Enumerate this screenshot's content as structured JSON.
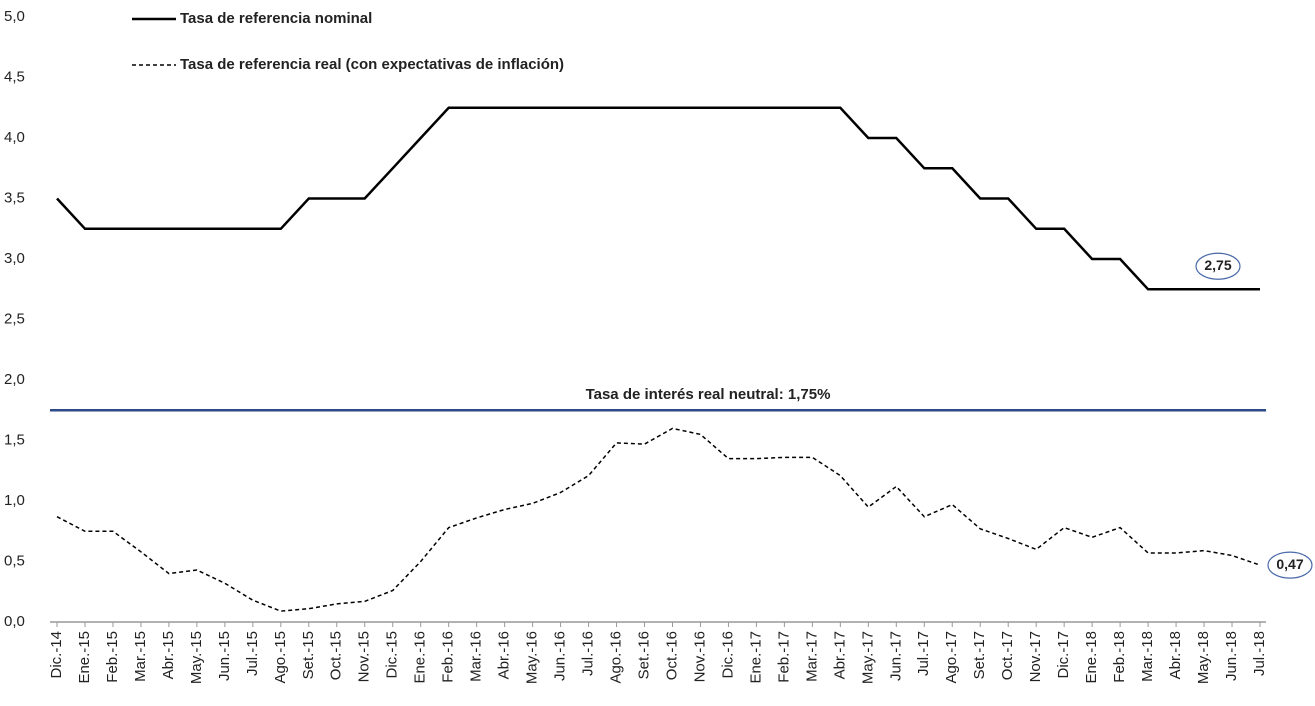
{
  "chart_data": {
    "type": "line",
    "categories": [
      "Dic.-14",
      "Ene.-15",
      "Feb.-15",
      "Mar.-15",
      "Abr.-15",
      "May.-15",
      "Jun.-15",
      "Jul.-15",
      "Ago.-15",
      "Set.-15",
      "Oct.-15",
      "Nov.-15",
      "Dic.-15",
      "Ene.-16",
      "Feb.-16",
      "Mar.-16",
      "Abr.-16",
      "May.-16",
      "Jun.-16",
      "Jul.-16",
      "Ago.-16",
      "Set.-16",
      "Oct.-16",
      "Nov.-16",
      "Dic.-16",
      "Ene.-17",
      "Feb.-17",
      "Mar.-17",
      "Abr.-17",
      "May.-17",
      "Jun.-17",
      "Jul.-17",
      "Ago.-17",
      "Set.-17",
      "Oct.-17",
      "Nov.-17",
      "Dic.-17",
      "Ene.-18",
      "Feb.-18",
      "Mar.-18",
      "Abr.-18",
      "May.-18",
      "Jun.-18",
      "Jul.-18"
    ],
    "series": [
      {
        "name": "Tasa de referencia nominal",
        "color": "#000000",
        "line_style": "solid",
        "values": [
          3.5,
          3.25,
          3.25,
          3.25,
          3.25,
          3.25,
          3.25,
          3.25,
          3.25,
          3.5,
          3.5,
          3.5,
          3.75,
          4.0,
          4.25,
          4.25,
          4.25,
          4.25,
          4.25,
          4.25,
          4.25,
          4.25,
          4.25,
          4.25,
          4.25,
          4.25,
          4.25,
          4.25,
          4.25,
          4.0,
          4.0,
          3.75,
          3.75,
          3.5,
          3.5,
          3.25,
          3.25,
          3.0,
          3.0,
          2.75,
          2.75,
          2.75,
          2.75,
          2.75
        ],
        "value_labels": [
          null,
          null,
          null,
          null,
          null,
          null,
          null,
          null,
          null,
          null,
          null,
          null,
          null,
          null,
          null,
          null,
          null,
          null,
          null,
          null,
          null,
          null,
          null,
          null,
          null,
          null,
          null,
          null,
          null,
          null,
          null,
          null,
          null,
          null,
          null,
          null,
          null,
          null,
          null,
          null,
          null,
          null,
          null,
          "2,75"
        ]
      },
      {
        "name": "Tasa de referencia real (con expectativas de inflación)",
        "color": "#000000",
        "line_style": "dashed",
        "values": [
          0.87,
          0.75,
          0.75,
          0.58,
          0.4,
          0.43,
          0.32,
          0.18,
          0.09,
          0.11,
          0.15,
          0.17,
          0.26,
          0.5,
          0.78,
          0.86,
          0.93,
          0.98,
          1.07,
          1.21,
          1.48,
          1.47,
          1.6,
          1.55,
          1.35,
          1.35,
          1.36,
          1.36,
          1.21,
          0.95,
          1.12,
          0.87,
          0.97,
          0.77,
          0.69,
          0.6,
          0.78,
          0.7,
          0.78,
          0.57,
          0.57,
          0.59,
          0.55,
          0.47
        ],
        "value_labels": [
          null,
          null,
          null,
          null,
          null,
          null,
          null,
          null,
          null,
          null,
          null,
          null,
          null,
          null,
          null,
          null,
          null,
          null,
          null,
          null,
          null,
          null,
          null,
          null,
          null,
          null,
          null,
          null,
          null,
          null,
          null,
          null,
          null,
          null,
          null,
          null,
          null,
          null,
          null,
          null,
          null,
          null,
          null,
          "0,47"
        ]
      }
    ],
    "reference_line": {
      "value": 1.75,
      "label": "Tasa de interés real neutral: 1,75%",
      "color": "#2e4a8a"
    },
    "ylim": [
      0,
      5
    ],
    "yticks": [
      {
        "value": 0,
        "label": "0,0"
      },
      {
        "value": 0.5,
        "label": "0,5"
      },
      {
        "value": 1,
        "label": "1,0"
      },
      {
        "value": 1.5,
        "label": "1,5"
      },
      {
        "value": 2,
        "label": "2,0"
      },
      {
        "value": 2.5,
        "label": "2,5"
      },
      {
        "value": 3,
        "label": "3,0"
      },
      {
        "value": 3.5,
        "label": "3,5"
      },
      {
        "value": 4,
        "label": "4,0"
      },
      {
        "value": 4.5,
        "label": "4,5"
      },
      {
        "value": 5,
        "label": "5,0"
      }
    ],
    "grid": false,
    "legend": "top-left",
    "label_ring_color": "#4a6aa8"
  }
}
